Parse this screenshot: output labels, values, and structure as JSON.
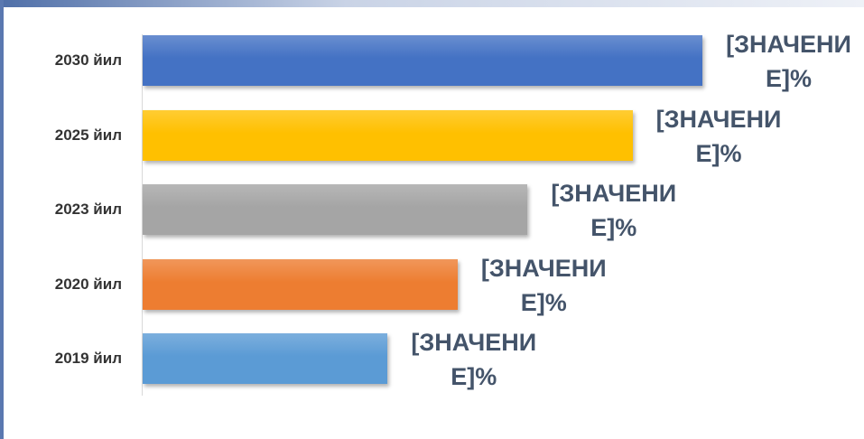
{
  "chart_data": {
    "type": "barh",
    "categories": [
      "2030 йил",
      "2025 йил",
      "2023 йил",
      "2020 йил",
      "2019 йил"
    ],
    "values": [
      8,
      7,
      5.5,
      4.5,
      3.5
    ],
    "value_labels": [
      "[ЗНАЧЕНИЕ]%",
      "[ЗНАЧЕНИЕ]%",
      "[ЗНАЧЕНИЕ]%",
      "[ЗНАЧЕНИЕ]%",
      "[ЗНАЧЕНИЕ]%"
    ],
    "colors": [
      "#4472c4",
      "#ffc000",
      "#a5a5a5",
      "#ed7d31",
      "#5b9bd5"
    ]
  }
}
